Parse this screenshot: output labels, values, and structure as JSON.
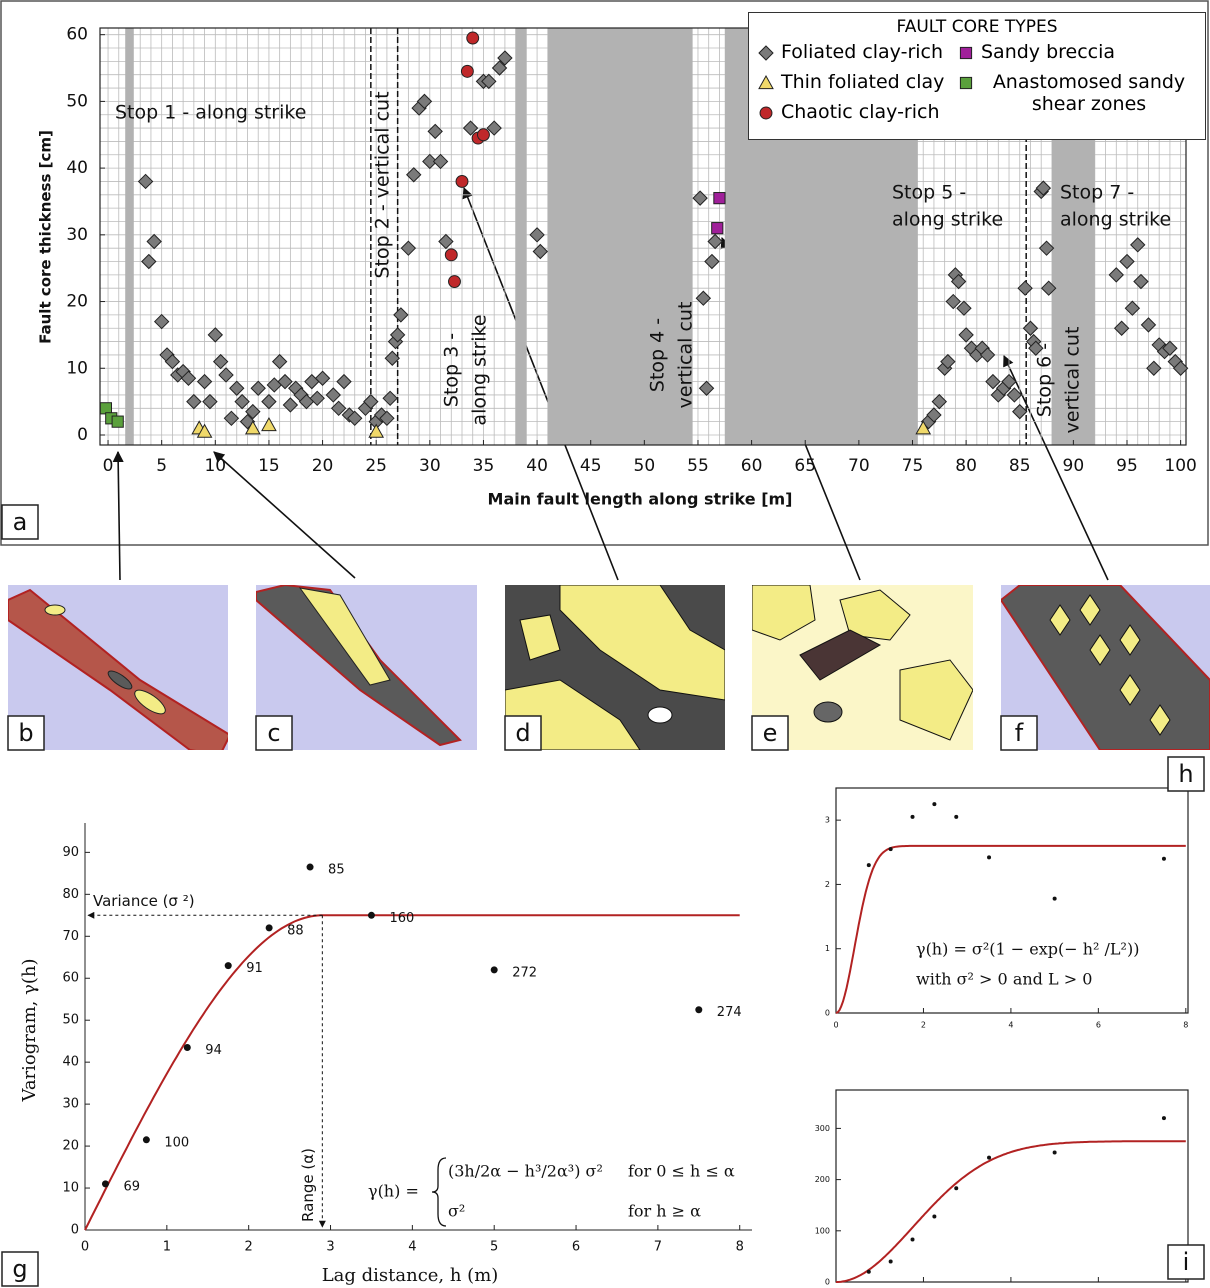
{
  "chart_data": [
    {
      "type": "scatter",
      "panel_label": "a",
      "xlabel": "Main fault length along strike [m]",
      "ylabel": "Fault core thickness [cm]",
      "xlim": [
        -0.75,
        100.5
      ],
      "ylim": [
        -1.5,
        61
      ],
      "xticks": [
        0,
        5,
        10,
        15,
        20,
        25,
        30,
        35,
        40,
        45,
        50,
        55,
        60,
        65,
        70,
        75,
        80,
        85,
        90,
        95,
        100
      ],
      "yticks": [
        0,
        10,
        20,
        30,
        40,
        50,
        60
      ],
      "minor_grid": {
        "x": 1,
        "y": 2
      },
      "bands": [
        [
          1.6,
          2.4
        ],
        [
          38,
          39
        ],
        [
          41,
          54.5
        ],
        [
          57.5,
          75.5
        ],
        [
          88,
          92
        ]
      ],
      "dashed_lines": [
        24.5,
        27,
        85.6
      ],
      "legend_title": "FAULT CORE TYPES",
      "annotations": [
        [
          "Stop 1 - along strike"
        ],
        [
          "Stop 2 - vertical cut"
        ],
        [
          "Stop 3 -",
          "along strike"
        ],
        [
          "Stop 4 -",
          "vertical cut"
        ],
        [
          "Stop 5 -",
          "along strike"
        ],
        [
          "Stop 6 -",
          "vertical cut"
        ],
        [
          "Stop 7 -",
          "along strike"
        ]
      ],
      "series": [
        {
          "name": "Foliated clay-rich",
          "color": "#7a7a7a",
          "marker": "diamond",
          "x": [
            3.5,
            3.8,
            4.3,
            5,
            5.5,
            6,
            6.5,
            7,
            7.5,
            8,
            9,
            9.5,
            10,
            10.5,
            11,
            11.5,
            12,
            12.5,
            13,
            13.5,
            14,
            15,
            15.5,
            16,
            16.5,
            17,
            17.5,
            18,
            18.5,
            19,
            19.5,
            20,
            21,
            21.5,
            22,
            22.5,
            23,
            24,
            24.5,
            25,
            25.5,
            26,
            26.3,
            26.5,
            26.8,
            27,
            27.3,
            28,
            28.5,
            29,
            29.5,
            30,
            30.5,
            31,
            31.5,
            33.8,
            35,
            35.5,
            36,
            36.5,
            37,
            40,
            40.3,
            55.2,
            55.5,
            55.8,
            56.3,
            56.6,
            76.5,
            77,
            77.5,
            78,
            78.3,
            78.8,
            79,
            79.3,
            79.8,
            80,
            80.5,
            81,
            81.5,
            82,
            82.5,
            83,
            83.5,
            84,
            84.5,
            85,
            85.5,
            86,
            86.3,
            86.5,
            87,
            87.2,
            87.5,
            87.7,
            94,
            94.5,
            95,
            95.5,
            96,
            96.3,
            97,
            97.5,
            98,
            98.5,
            99,
            99.5,
            100
          ],
          "values": [
            38,
            26,
            29,
            17,
            12,
            11,
            9,
            9.5,
            8.5,
            5,
            8,
            5,
            15,
            11,
            9,
            2.5,
            7,
            5,
            2,
            3.5,
            7,
            5,
            7.5,
            11,
            8,
            4.5,
            7,
            6,
            5,
            8,
            5.5,
            8.5,
            6,
            4,
            8,
            3,
            2.5,
            4,
            5,
            2,
            3,
            2.5,
            5.5,
            11.5,
            14,
            15,
            18,
            28,
            39,
            49,
            50,
            41,
            45.5,
            41,
            29,
            46,
            53,
            53,
            46,
            55,
            56.5,
            30,
            27.5,
            35.5,
            20.5,
            7,
            26,
            29,
            2,
            3,
            5,
            10,
            11,
            20,
            24,
            23,
            19,
            15,
            13,
            12,
            13,
            12,
            8,
            6,
            7,
            8,
            6,
            3.5,
            22,
            16,
            14,
            13,
            36.5,
            37,
            28,
            22,
            24,
            16,
            26,
            19,
            28.5,
            23,
            16.5,
            10,
            13.5,
            12.5,
            13,
            11,
            10
          ]
        },
        {
          "name": "Thin foliated clay",
          "color": "#f0d96a",
          "marker": "triangle",
          "x": [
            8.5,
            9,
            13.5,
            15,
            25,
            76
          ],
          "values": [
            1,
            0.5,
            1,
            1.5,
            0.5,
            1
          ]
        },
        {
          "name": "Chaotic clay-rich",
          "color": "#c0282a",
          "marker": "circle",
          "x": [
            32,
            32.3,
            33,
            33.5,
            34,
            34.5,
            35
          ],
          "values": [
            27,
            23,
            38,
            54.5,
            59.5,
            44.5,
            45
          ]
        },
        {
          "name": "Sandy breccia",
          "color": "#a0209a",
          "marker": "square",
          "x": [
            57,
            56.8
          ],
          "values": [
            35.5,
            31
          ]
        },
        {
          "name": "Anastomosed sandy shear zones",
          "color": "#5aa03c",
          "marker": "square",
          "x": [
            -0.2,
            0.3,
            0.9
          ],
          "values": [
            4,
            2.5,
            2
          ]
        }
      ]
    },
    {
      "type": "scatter",
      "panel_label": "g",
      "xlabel": "Lag distance, h (m)",
      "ylabel": "Variogram, γ(h)",
      "xlim": [
        0,
        8.15
      ],
      "ylim": [
        0,
        97
      ],
      "xticks": [
        0,
        1,
        2,
        3,
        4,
        5,
        6,
        7,
        8
      ],
      "yticks": [
        0,
        10,
        20,
        30,
        40,
        50,
        60,
        70,
        80,
        90
      ],
      "x": [
        0.25,
        0.75,
        1.25,
        1.75,
        2.25,
        2.75,
        3.5,
        5,
        7.5
      ],
      "values": [
        11,
        21.5,
        43.5,
        63,
        72,
        86.5,
        75,
        62,
        52.5
      ],
      "point_labels": [
        69,
        100,
        94,
        91,
        88,
        85,
        160,
        272,
        274
      ],
      "color": "#111111",
      "model": {
        "kind": "spherical",
        "sill": 75,
        "range": 2.9,
        "color": "#b22222"
      },
      "sill_label": "Variance (σ ²)",
      "range_label": "Range (α)",
      "formula": {
        "lhs": "γ(h) =",
        "cases": [
          {
            "expr": "(3h/2α − h³/2α³) σ²",
            "cond": "for 0 ≤ h ≤ α"
          },
          {
            "expr": "σ²",
            "cond": "for h ≥ α"
          }
        ]
      }
    },
    {
      "type": "scatter",
      "panel_label": "h",
      "xlim": [
        0,
        8.05
      ],
      "ylim": [
        0,
        3.5
      ],
      "xticks": [
        0,
        2,
        4,
        6,
        8
      ],
      "yticks": [
        0,
        1,
        2,
        3
      ],
      "x": [
        0.75,
        1.25,
        1.75,
        2.25,
        2.75,
        3.5,
        5,
        7.5
      ],
      "values": [
        2.3,
        2.55,
        3.05,
        3.25,
        3.05,
        2.42,
        1.78,
        2.4
      ],
      "color": "#111111",
      "model": {
        "kind": "gaussian",
        "sill": 2.6,
        "range": 0.6,
        "color": "#b22222"
      },
      "formula_lines": [
        "γ(h) = σ²(1 − exp(− h² /L²))",
        "with  σ² > 0 and L > 0"
      ]
    },
    {
      "type": "scatter",
      "panel_label": "i",
      "xlim": [
        0,
        8.05
      ],
      "ylim": [
        0,
        375
      ],
      "xticks": [
        0,
        2,
        4,
        6,
        8
      ],
      "yticks": [
        0,
        100,
        200,
        300
      ],
      "x": [
        0.75,
        1.25,
        1.75,
        2.25,
        2.75,
        3.5,
        5,
        7.5
      ],
      "values": [
        20,
        40,
        83,
        128,
        183,
        243,
        253,
        320
      ],
      "color": "#111111",
      "model": {
        "kind": "gaussian",
        "sill": 275,
        "range": 2.5,
        "color": "#b22222"
      }
    }
  ],
  "illustrations": {
    "labels": [
      "b",
      "c",
      "d",
      "e",
      "f"
    ]
  }
}
